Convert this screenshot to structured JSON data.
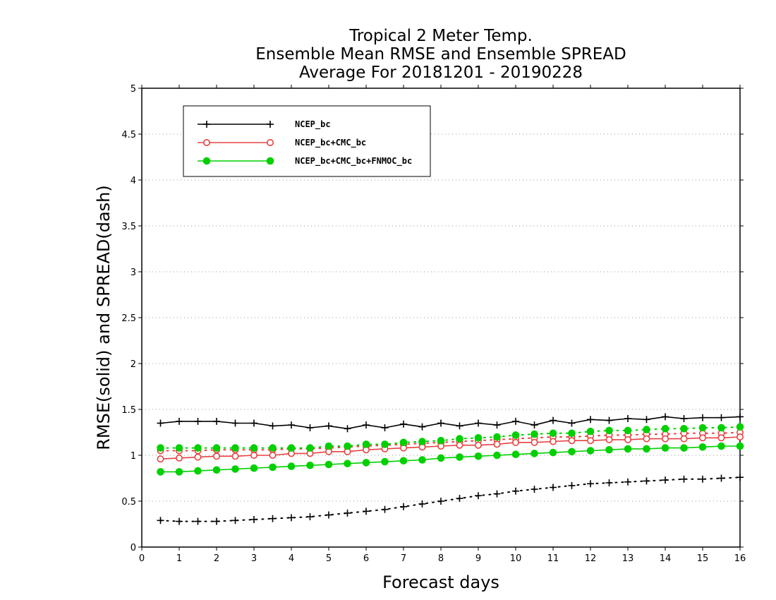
{
  "chart_data": {
    "type": "line",
    "title_lines": [
      "Tropical 2 Meter Temp.",
      "Ensemble Mean RMSE and Ensemble SPREAD",
      "Average For 20181201 - 20190228"
    ],
    "xlabel": "Forecast days",
    "ylabel": "RMSE(solid) and SPREAD(dash)",
    "xlim": [
      0,
      16
    ],
    "ylim": [
      0,
      5
    ],
    "xticks": [
      "0",
      "1",
      "2",
      "3",
      "4",
      "5",
      "6",
      "7",
      "8",
      "9",
      "10",
      "11",
      "12",
      "13",
      "14",
      "15",
      "16"
    ],
    "yticks": [
      "0",
      "0.5",
      "1",
      "1.5",
      "2",
      "2.5",
      "3",
      "3.5",
      "4",
      "4.5",
      "5"
    ],
    "grid": "horizontal dotted",
    "legend_position": "top-left",
    "x": [
      0.5,
      1,
      1.5,
      2,
      2.5,
      3,
      3.5,
      4,
      4.5,
      5,
      5.5,
      6,
      6.5,
      7,
      7.5,
      8,
      8.5,
      9,
      9.5,
      10,
      10.5,
      11,
      11.5,
      12,
      12.5,
      13,
      13.5,
      14,
      14.5,
      15,
      15.5,
      16
    ],
    "series": [
      {
        "name": "NCEP_bc",
        "color": "#000000",
        "marker": "plus",
        "rmse": [
          1.35,
          1.37,
          1.37,
          1.37,
          1.35,
          1.35,
          1.32,
          1.33,
          1.3,
          1.32,
          1.29,
          1.33,
          1.3,
          1.34,
          1.31,
          1.35,
          1.32,
          1.35,
          1.33,
          1.37,
          1.33,
          1.38,
          1.35,
          1.39,
          1.38,
          1.4,
          1.39,
          1.42,
          1.4,
          1.41,
          1.41,
          1.42
        ],
        "spread": [
          0.29,
          0.28,
          0.28,
          0.28,
          0.29,
          0.3,
          0.31,
          0.32,
          0.33,
          0.35,
          0.37,
          0.39,
          0.41,
          0.44,
          0.47,
          0.5,
          0.53,
          0.56,
          0.58,
          0.61,
          0.63,
          0.65,
          0.67,
          0.69,
          0.7,
          0.71,
          0.72,
          0.73,
          0.74,
          0.74,
          0.75,
          0.76
        ]
      },
      {
        "name": "NCEP_bc+CMC_bc",
        "color": "#e84040",
        "marker": "open-circle",
        "rmse": [
          0.96,
          0.97,
          0.98,
          0.99,
          0.99,
          1.0,
          1.0,
          1.02,
          1.02,
          1.04,
          1.04,
          1.06,
          1.07,
          1.08,
          1.09,
          1.1,
          1.11,
          1.11,
          1.12,
          1.14,
          1.14,
          1.15,
          1.16,
          1.16,
          1.17,
          1.17,
          1.18,
          1.18,
          1.18,
          1.19,
          1.19,
          1.2
        ],
        "spread": [
          1.05,
          1.05,
          1.05,
          1.06,
          1.06,
          1.06,
          1.06,
          1.07,
          1.07,
          1.08,
          1.09,
          1.1,
          1.11,
          1.12,
          1.13,
          1.14,
          1.15,
          1.16,
          1.17,
          1.18,
          1.19,
          1.2,
          1.2,
          1.21,
          1.22,
          1.22,
          1.23,
          1.23,
          1.24,
          1.24,
          1.24,
          1.25
        ]
      },
      {
        "name": "NCEP_bc+CMC_bc+FNMOC_bc",
        "color": "#00d000",
        "marker": "filled-circle",
        "rmse": [
          0.82,
          0.82,
          0.83,
          0.84,
          0.85,
          0.86,
          0.87,
          0.88,
          0.89,
          0.9,
          0.91,
          0.92,
          0.93,
          0.94,
          0.95,
          0.97,
          0.98,
          0.99,
          1.0,
          1.01,
          1.02,
          1.03,
          1.04,
          1.05,
          1.06,
          1.07,
          1.07,
          1.08,
          1.08,
          1.09,
          1.1,
          1.1
        ],
        "spread": [
          1.08,
          1.08,
          1.08,
          1.08,
          1.08,
          1.08,
          1.08,
          1.08,
          1.08,
          1.1,
          1.1,
          1.12,
          1.12,
          1.14,
          1.15,
          1.16,
          1.18,
          1.19,
          1.2,
          1.22,
          1.23,
          1.24,
          1.24,
          1.26,
          1.27,
          1.27,
          1.28,
          1.29,
          1.29,
          1.3,
          1.3,
          1.31
        ]
      }
    ]
  }
}
